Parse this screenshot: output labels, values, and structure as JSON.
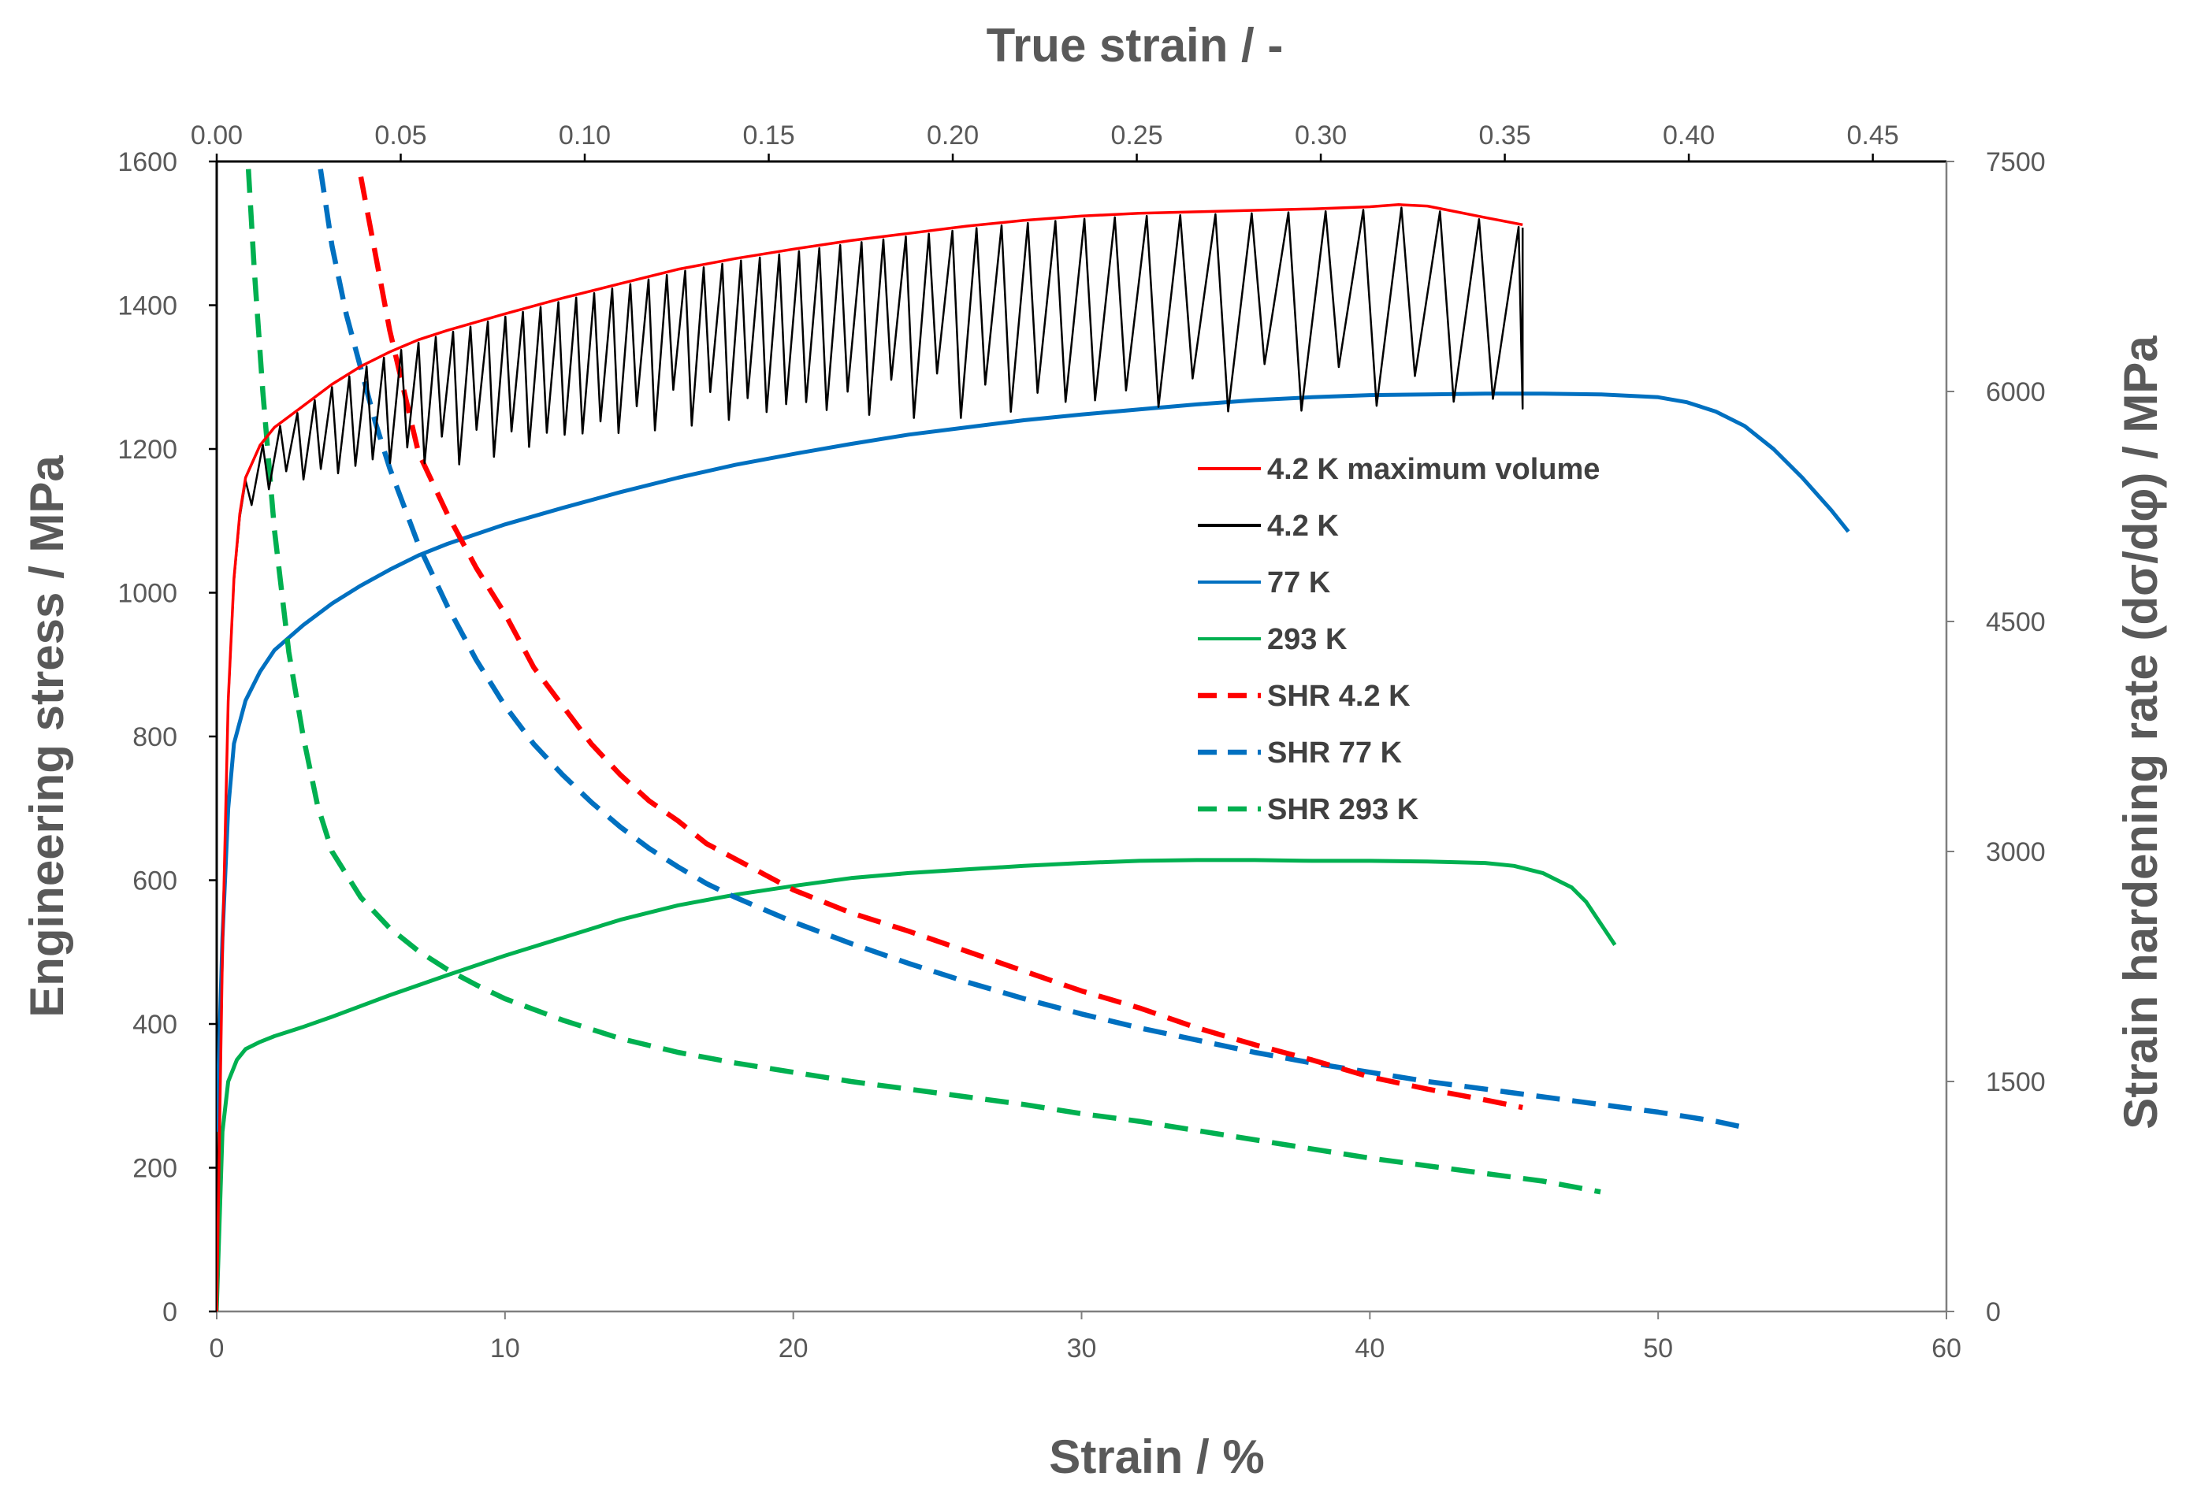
{
  "chart_data": {
    "type": "line",
    "title": "",
    "xlabel": "Strain / %",
    "ylabel": "Engineering stress  / MPa",
    "x2label": "True strain  /  -",
    "y2label": "Strain hardening rate (dσ/dφ)  / MPa",
    "xlim": [
      0,
      60
    ],
    "ylim": [
      0,
      1600
    ],
    "x2lim": [
      0,
      0.47
    ],
    "y2lim": [
      0,
      7500
    ],
    "xticks": [
      "0",
      "10",
      "20",
      "30",
      "40",
      "50",
      "60"
    ],
    "yticks": [
      "0",
      "200",
      "400",
      "600",
      "800",
      "1000",
      "1200",
      "1400",
      "1600"
    ],
    "x2ticks": [
      "0.00",
      "0.05",
      "0.10",
      "0.15",
      "0.20",
      "0.25",
      "0.30",
      "0.35",
      "0.40",
      "0.45"
    ],
    "y2ticks": [
      "0",
      "1500",
      "3000",
      "4500",
      "6000",
      "7500"
    ],
    "grid": false,
    "legend_position": "center-right",
    "series": [
      {
        "name": "4.2 K maximum volume",
        "color": "#ff0000",
        "dash": "solid",
        "axis": "left",
        "x": [
          0,
          0.2,
          0.4,
          0.6,
          0.8,
          1.0,
          1.5,
          2,
          3,
          4,
          5,
          6,
          7,
          8,
          10,
          12,
          14,
          16,
          18,
          20,
          22,
          24,
          26,
          28,
          30,
          32,
          34,
          36,
          38,
          40,
          41,
          42,
          43,
          44,
          45.3
        ],
        "y": [
          0,
          500,
          850,
          1020,
          1110,
          1160,
          1205,
          1230,
          1260,
          1290,
          1315,
          1335,
          1352,
          1365,
          1388,
          1410,
          1430,
          1450,
          1465,
          1478,
          1490,
          1500,
          1510,
          1518,
          1524,
          1528,
          1530,
          1532,
          1534,
          1537,
          1540,
          1538,
          1530,
          1522,
          1512
        ]
      },
      {
        "name": "4.2 K",
        "color": "#000000",
        "dash": "solid",
        "axis": "left",
        "envelope": {
          "x": [
            0,
            0.2,
            0.4,
            0.6,
            0.8,
            1.0,
            1.5,
            2,
            3,
            4,
            5,
            6,
            7,
            8,
            10,
            12,
            14,
            16,
            18,
            20,
            22,
            24,
            26,
            28,
            30,
            32,
            34,
            36,
            38,
            40,
            41,
            42,
            43,
            44,
            45.3
          ],
          "y": [
            0,
            500,
            850,
            1020,
            1110,
            1160,
            1205,
            1230,
            1260,
            1290,
            1315,
            1335,
            1352,
            1365,
            1388,
            1410,
            1430,
            1450,
            1465,
            1478,
            1490,
            1500,
            1510,
            1518,
            1524,
            1528,
            1530,
            1532,
            1534,
            1537,
            1540,
            1538,
            1530,
            1522,
            1512
          ]
        },
        "serrations": {
          "start_x": 1.0,
          "end_x": 45.3,
          "spacing_x": [
            [
              1,
              0.6
            ],
            [
              8,
              0.6
            ],
            [
              18,
              0.65
            ],
            [
              26,
              0.85
            ],
            [
              34,
              1.25
            ],
            [
              46,
              1.4
            ]
          ],
          "drop_mpa": [
            [
              1,
              40
            ],
            [
              4,
              110
            ],
            [
              8,
              160
            ],
            [
              14,
              180
            ],
            [
              20,
              200
            ],
            [
              26,
              230
            ],
            [
              34,
              240
            ],
            [
              46,
              240
            ]
          ]
        }
      },
      {
        "name": "77 K",
        "color": "#0070c0",
        "dash": "solid",
        "axis": "left",
        "x": [
          0,
          0.2,
          0.4,
          0.6,
          1,
          1.5,
          2,
          3,
          4,
          5,
          6,
          7,
          8,
          10,
          12,
          14,
          16,
          18,
          20,
          22,
          24,
          26,
          28,
          30,
          32,
          34,
          36,
          38,
          40,
          42,
          44,
          46,
          48,
          50,
          51,
          52,
          53,
          54,
          55,
          56,
          56.6
        ],
        "y": [
          250,
          520,
          700,
          790,
          850,
          890,
          920,
          955,
          985,
          1010,
          1032,
          1052,
          1068,
          1095,
          1118,
          1140,
          1160,
          1178,
          1193,
          1207,
          1220,
          1230,
          1240,
          1248,
          1255,
          1262,
          1268,
          1272,
          1275,
          1276,
          1277,
          1277,
          1276,
          1272,
          1265,
          1252,
          1232,
          1200,
          1160,
          1115,
          1085
        ]
      },
      {
        "name": "293 K",
        "color": "#00b050",
        "dash": "solid",
        "axis": "left",
        "x": [
          0,
          0.2,
          0.4,
          0.7,
          1,
          1.5,
          2,
          3,
          4,
          5,
          6,
          8,
          10,
          12,
          14,
          16,
          18,
          20,
          22,
          24,
          26,
          28,
          30,
          32,
          34,
          36,
          38,
          40,
          42,
          44,
          45,
          46,
          47,
          47.5,
          48,
          48.5
        ],
        "y": [
          0,
          250,
          320,
          350,
          365,
          375,
          383,
          396,
          410,
          425,
          440,
          468,
          495,
          520,
          545,
          565,
          580,
          592,
          603,
          610,
          615,
          620,
          624,
          627,
          628,
          628,
          627,
          627,
          626,
          624,
          620,
          610,
          590,
          570,
          540,
          510
        ]
      },
      {
        "name": "SHR 4.2 K",
        "color": "#ff0000",
        "dash": "dashed",
        "axis": "right",
        "x": [
          5.0,
          5.5,
          6,
          6.5,
          7,
          8,
          9,
          10,
          11,
          12,
          13,
          14,
          15,
          16,
          17,
          18,
          19,
          20,
          22,
          24,
          26,
          28,
          30,
          32,
          34,
          36,
          38,
          40,
          42,
          44,
          45.3
        ],
        "y": [
          7400,
          6900,
          6400,
          6000,
          5600,
          5200,
          4850,
          4550,
          4200,
          3950,
          3700,
          3500,
          3330,
          3200,
          3050,
          2950,
          2850,
          2750,
          2600,
          2480,
          2350,
          2220,
          2090,
          1980,
          1850,
          1740,
          1640,
          1530,
          1450,
          1380,
          1330
        ]
      },
      {
        "name": "SHR 77 K",
        "color": "#0070c0",
        "dash": "dashed",
        "axis": "right",
        "x": [
          3.6,
          4,
          4.5,
          5,
          5.5,
          6,
          7,
          8,
          9,
          10,
          11,
          12,
          13,
          14,
          15,
          16,
          17,
          18,
          19,
          20,
          22,
          24,
          26,
          28,
          30,
          32,
          34,
          36,
          38,
          40,
          42,
          44,
          46,
          48,
          50,
          52,
          53
        ],
        "y": [
          7450,
          6950,
          6500,
          6150,
          5800,
          5500,
          5000,
          4600,
          4250,
          3950,
          3700,
          3500,
          3320,
          3160,
          3020,
          2900,
          2790,
          2700,
          2620,
          2540,
          2400,
          2270,
          2150,
          2040,
          1940,
          1850,
          1770,
          1690,
          1620,
          1560,
          1500,
          1450,
          1400,
          1350,
          1300,
          1240,
          1200
        ]
      },
      {
        "name": "SHR 293 K",
        "color": "#00b050",
        "dash": "dashed",
        "axis": "right",
        "x": [
          1.1,
          1.3,
          1.6,
          2,
          2.5,
          3,
          3.5,
          4,
          5,
          6,
          7,
          8,
          9,
          10,
          12,
          14,
          16,
          18,
          20,
          22,
          24,
          26,
          28,
          30,
          32,
          34,
          36,
          38,
          40,
          42,
          44,
          46,
          48
        ],
        "y": [
          7450,
          6800,
          6000,
          5100,
          4300,
          3750,
          3300,
          3000,
          2700,
          2500,
          2350,
          2230,
          2130,
          2040,
          1900,
          1780,
          1690,
          1620,
          1560,
          1500,
          1450,
          1400,
          1350,
          1290,
          1240,
          1180,
          1120,
          1060,
          1000,
          950,
          900,
          850,
          780
        ]
      }
    ]
  }
}
